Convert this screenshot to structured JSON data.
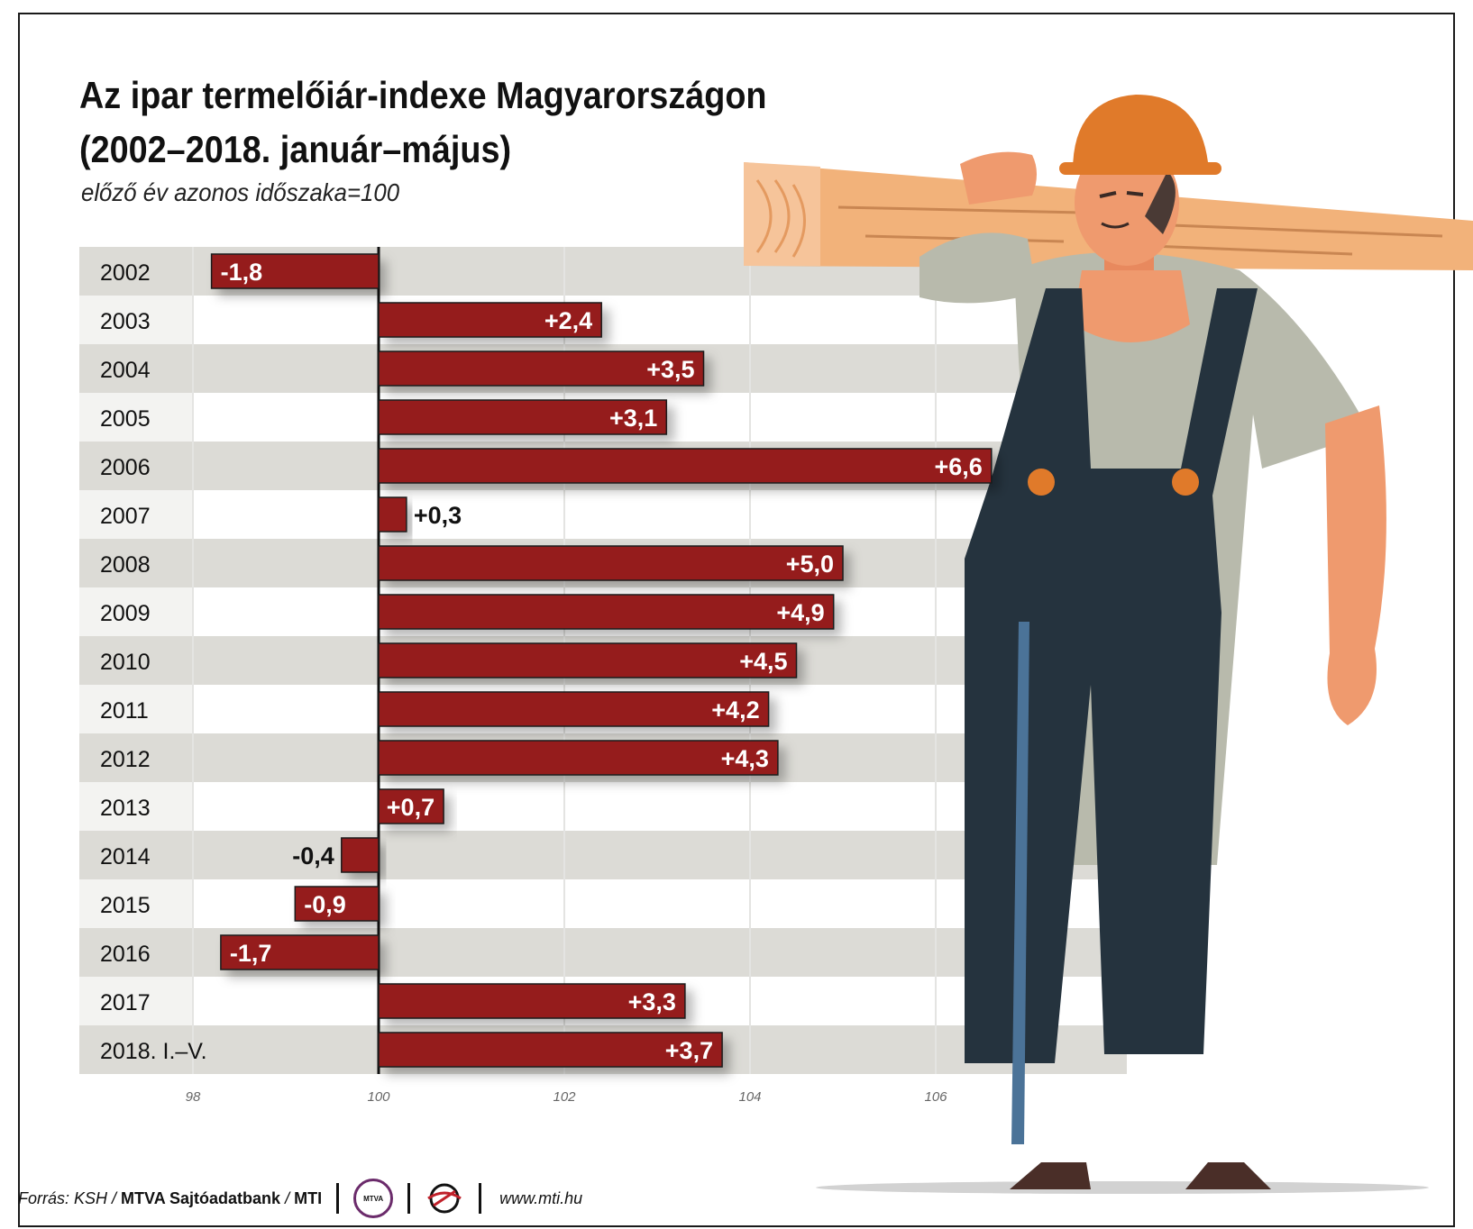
{
  "title_line1": "Az ipar termelőiár-indexe Magyarországon",
  "title_line2": "(2002–2018. január–május)",
  "subtitle": "előző év azonos időszaka=100",
  "chart_data": {
    "type": "bar",
    "orientation": "horizontal",
    "baseline": 100,
    "categories": [
      "2002",
      "2003",
      "2004",
      "2005",
      "2006",
      "2007",
      "2008",
      "2009",
      "2010",
      "2011",
      "2012",
      "2013",
      "2014",
      "2015",
      "2016",
      "2017",
      "2018. I.–V."
    ],
    "values": [
      -1.8,
      2.4,
      3.5,
      3.1,
      6.6,
      0.3,
      5.0,
      4.9,
      4.5,
      4.2,
      4.3,
      0.7,
      -0.4,
      -0.9,
      -1.7,
      3.3,
      3.7
    ],
    "value_labels": [
      "-1,8",
      "+2,4",
      "+3,5",
      "+3,1",
      "+6,6",
      "+0,3",
      "+5,0",
      "+4,9",
      "+4,5",
      "+4,2",
      "+4,3",
      "+0,7",
      "-0,4",
      "-0,9",
      "-1,7",
      "+3,3",
      "+3,7"
    ],
    "xlim": [
      98,
      107
    ],
    "xticks": [
      "98",
      "100",
      "102",
      "104",
      "106"
    ],
    "grid": true,
    "bar_color": "#951c1f",
    "row_band_color": "#dcdbd6"
  },
  "footer": {
    "source_prefix": "Forrás: KSH /",
    "source_bold": "MTVA Sajtóadatbank",
    "source_slash": "/",
    "source_mti": "MTI",
    "mtva_logo_text": "MTVA",
    "url": "www.mti.hu"
  },
  "illustration": "worker-carrying-plank"
}
